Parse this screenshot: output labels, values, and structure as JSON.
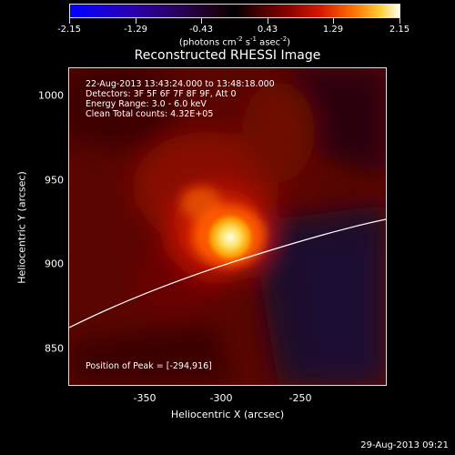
{
  "colorbar": {
    "tick_labels": [
      "-2.15",
      "-1.29",
      "-0.43",
      "0.43",
      "1.29",
      "2.15"
    ],
    "units_prefix": "(photons cm",
    "units_exp1": "-2",
    "units_mid1": " s",
    "units_exp2": "-1",
    "units_mid2": " asec",
    "units_exp3": "-2",
    "units_suffix": ")",
    "range": [
      -2.15,
      2.15
    ]
  },
  "plot": {
    "title": "Reconstructed RHESSI Image",
    "info_lines": [
      "22-Aug-2013 13:43:24.000 to 13:48:18.000",
      "Detectors: 3F 5F 6F 7F 8F 9F, Att 0",
      "Energy Range: 3.0 - 6.0 keV",
      "Clean     Total counts: 4.32E+05"
    ],
    "peak_text": "Position of Peak = [-294,916]",
    "x_axis_title": "Heliocentric X (arcsec)",
    "y_axis_title": "Heliocentric Y (arcsec)",
    "x_tick_labels": [
      "-350",
      "-300",
      "-250"
    ],
    "y_tick_labels": [
      "1000",
      "950",
      "900",
      "850"
    ],
    "x_range": [
      -392,
      -192
    ],
    "y_range": [
      816,
      1016
    ]
  },
  "footer": {
    "timestamp": "29-Aug-2013 09:21"
  },
  "colors": {
    "background": "#000000",
    "limb": "#ffffff",
    "peak": "#ffffcc"
  }
}
